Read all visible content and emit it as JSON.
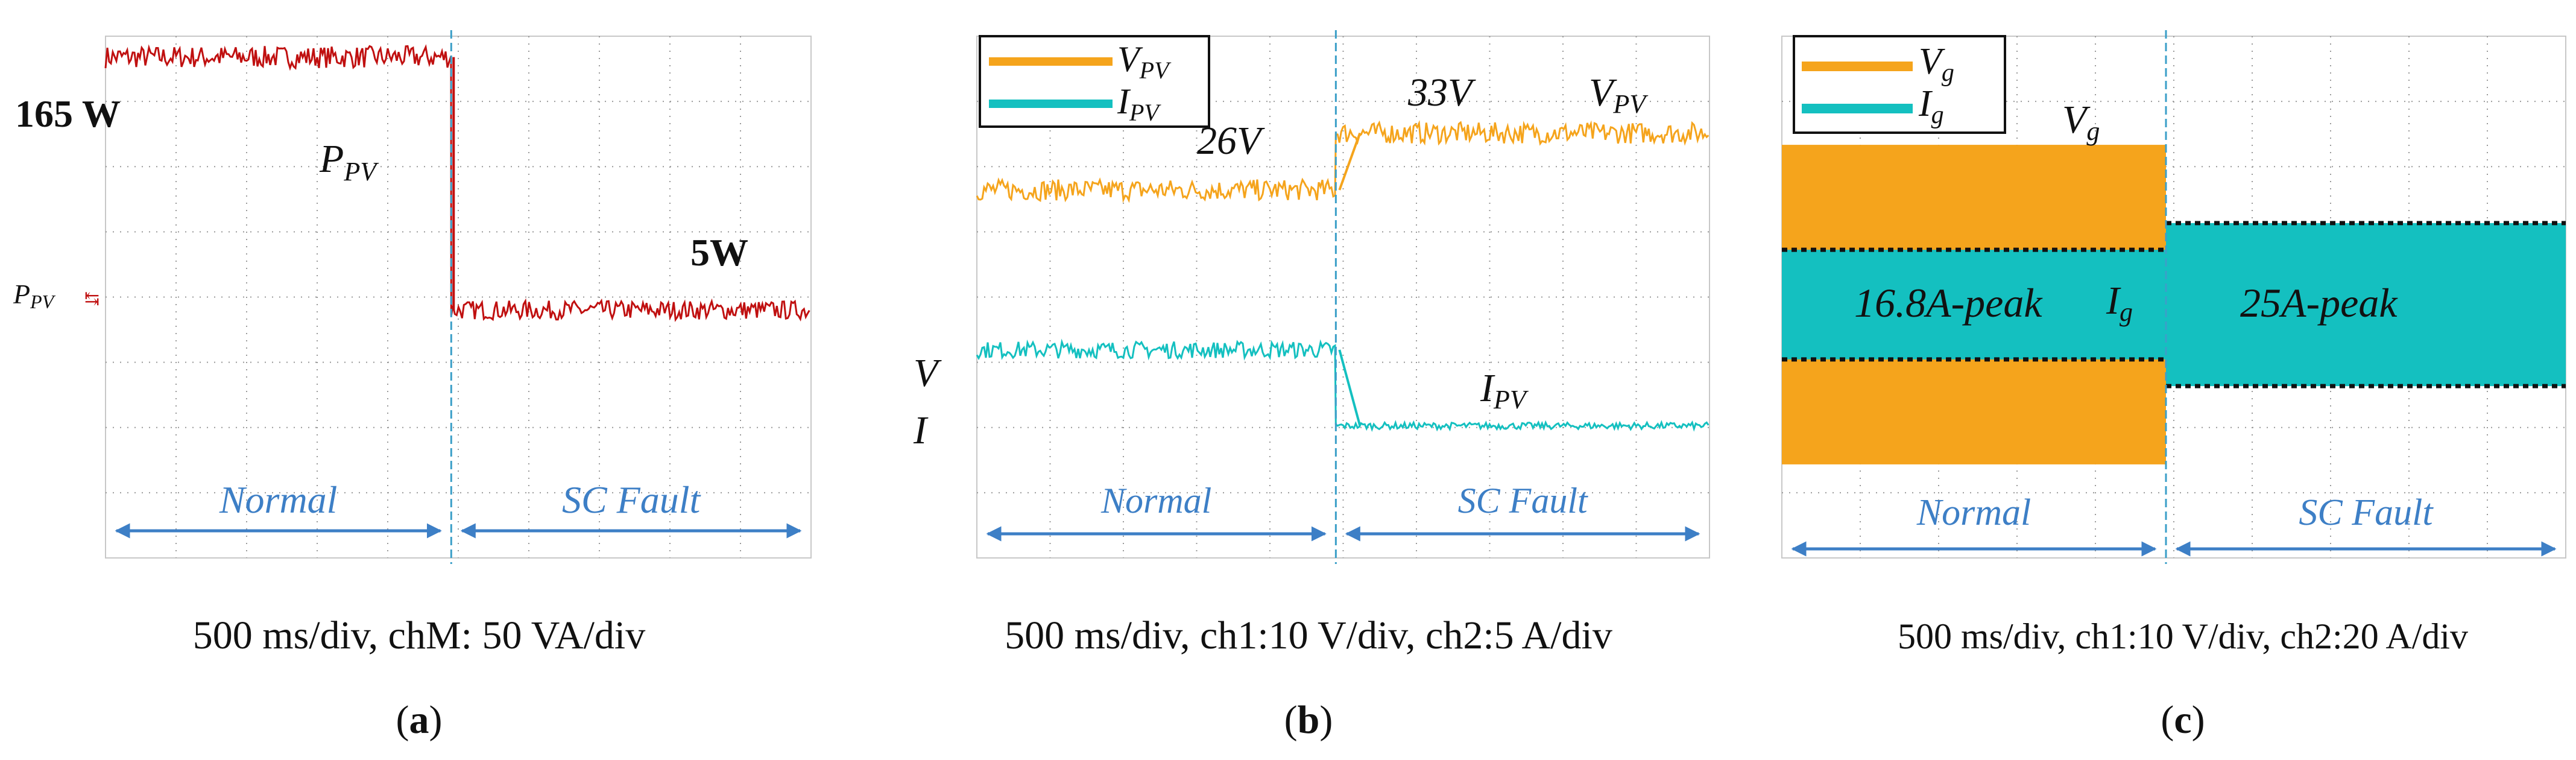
{
  "figure": {
    "colors": {
      "power": "#c01010",
      "voltage": "#f5a41c",
      "current": "#14c0c0",
      "grid": "#9a9a9a",
      "event_line": "#3b9fc8",
      "region": "#3d7fc6",
      "text": "#111111"
    }
  },
  "chart_data": [
    {
      "panel": "a",
      "type": "line",
      "caption": "500 ms/div, chM: 50 VA/div",
      "panel_label": "(a)",
      "x_unit": "ms",
      "x_scale_per_div": 500,
      "divisions_x": 10,
      "divisions_y": 8,
      "fault_time": 2450,
      "series": [
        {
          "name": "P_PV",
          "segments": [
            {
              "t": [
                0,
                2450
              ],
              "value": 165,
              "unit": "W",
              "noise": 7
            },
            {
              "t": [
                2450,
                5000
              ],
              "value": 5,
              "unit": "W",
              "noise": 6
            }
          ]
        }
      ],
      "annotations": {
        "level_high": "165 W",
        "level_low": "5W",
        "trace_label_main": "P",
        "trace_label_sub": "PV",
        "channel_label_main": "P",
        "channel_label_sub": "PV"
      },
      "regions": [
        {
          "label": "Normal",
          "from": 0,
          "to": 2450
        },
        {
          "label": "SC Fault",
          "from": 2450,
          "to": 5000
        }
      ]
    },
    {
      "panel": "b",
      "type": "line",
      "caption": "500 ms/div, ch1:10 V/div, ch2:5 A/div",
      "panel_label": "(b)",
      "x_unit": "ms",
      "x_scale_per_div": 500,
      "divisions_x": 10,
      "divisions_y": 8,
      "fault_time": 2450,
      "series": [
        {
          "name": "V_PV",
          "color": "voltage",
          "segments": [
            {
              "t": [
                0,
                2450
              ],
              "value": 26,
              "unit": "V",
              "noise": 1.3
            },
            {
              "t": [
                2450,
                5000
              ],
              "value": 33,
              "unit": "V",
              "noise": 1.3
            }
          ]
        },
        {
          "name": "I_PV",
          "color": "current",
          "segments": [
            {
              "t": [
                0,
                2450
              ],
              "value": 8.5,
              "unit": "A",
              "noise": 0.5
            },
            {
              "t": [
                2450,
                5000
              ],
              "value": 4,
              "unit": "A",
              "noise": 0.2
            }
          ]
        }
      ],
      "legend": [
        {
          "main": "V",
          "sub": "PV",
          "color": "voltage"
        },
        {
          "main": "I",
          "sub": "PV",
          "color": "current"
        }
      ],
      "annotations": {
        "v_before": "26V",
        "v_after": "33V",
        "v_trace_main": "V",
        "v_trace_sub": "PV",
        "i_trace_main": "I",
        "i_trace_sub": "PV",
        "channel_v": "V",
        "channel_i": "I"
      },
      "regions": [
        {
          "label": "Normal",
          "from": 0,
          "to": 2450
        },
        {
          "label": "SC Fault",
          "from": 2450,
          "to": 5000
        }
      ]
    },
    {
      "panel": "c",
      "type": "area",
      "caption": "500 ms/div, ch1:10 V/div, ch2:20 A/div",
      "panel_label": "(c)",
      "x_unit": "ms",
      "x_scale_per_div": 500,
      "divisions_x": 10,
      "divisions_y": 8,
      "fault_time": 2450,
      "series": [
        {
          "name": "V_g",
          "color": "voltage",
          "envelope_divisions": [
            {
              "t": [
                0,
                2450
              ],
              "amplitude": 2.45
            }
          ]
        },
        {
          "name": "I_g",
          "color": "current",
          "envelope": [
            {
              "t": [
                0,
                2450
              ],
              "peak": 16.8,
              "unit": "A"
            },
            {
              "t": [
                2450,
                5000
              ],
              "peak": 25,
              "unit": "A"
            }
          ]
        }
      ],
      "legend": [
        {
          "main": "V",
          "sub": "g",
          "color": "voltage"
        },
        {
          "main": "I",
          "sub": "g",
          "color": "current"
        }
      ],
      "annotations": {
        "peak_before": "16.8A-peak",
        "peak_after": "25A-peak",
        "v_trace_main": "V",
        "v_trace_sub": "g",
        "i_trace_main": "I",
        "i_trace_sub": "g"
      },
      "regions": [
        {
          "label": "Normal",
          "from": 0,
          "to": 2450
        },
        {
          "label": "SC Fault",
          "from": 2450,
          "to": 5000
        }
      ]
    }
  ]
}
